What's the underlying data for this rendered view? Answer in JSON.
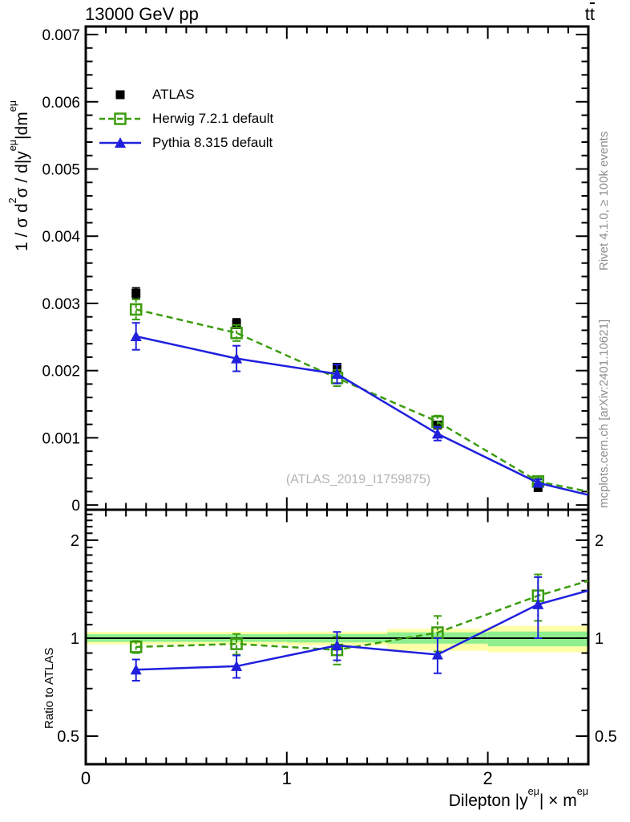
{
  "header": {
    "beam": "13000 GeV pp",
    "process_t": "t",
    "process_tbar": "t"
  },
  "credits": {
    "right_top": "Rivet 4.1.0, ≥ 100k events",
    "right_bottom": "mcplots.cern.ch [arXiv:2401.10621]"
  },
  "watermark": "(ATLAS_2019_I1759875)",
  "legend": {
    "items": [
      {
        "label": "ATLAS"
      },
      {
        "label": "Herwig 7.2.1 default"
      },
      {
        "label": "Pythia 8.315 default"
      }
    ]
  },
  "axis_titles": {
    "y_main_parts": {
      "p0": "1 / σ d",
      "p1": "2",
      "p2": "σ / d|y",
      "p3": "eμ",
      "p4": "|dm",
      "p5": "eμ"
    },
    "y_ratio": "Ratio to ATLAS",
    "x_parts": {
      "p0": "Dilepton |y",
      "p1": "eμ",
      "p2": "| × m",
      "p3": "eμ"
    }
  },
  "chart_data": {
    "type": "line",
    "title": "13000 GeV pp",
    "process": "ttbar",
    "xlabel": "Dilepton |y^emu| x m^emu",
    "ylabel_main": "1/sigma d2sigma / d|y^emu|dm^emu",
    "ylabel_ratio": "Ratio to ATLAS",
    "xlim": [
      0,
      2.5
    ],
    "x_centers": [
      0.25,
      0.75,
      1.25,
      1.75,
      2.25
    ],
    "bin_half_width": 0.25,
    "x_major_ticks": [
      {
        "v": 0,
        "label": "0"
      },
      {
        "v": 1,
        "label": "1"
      },
      {
        "v": 2,
        "label": "2"
      }
    ],
    "x_minor_step": 0.1,
    "main_panel": {
      "ylim": [
        -7e-05,
        0.00712
      ],
      "y_minor_step": 0.0002,
      "y_major_ticks": [
        {
          "v": 0,
          "label": "0"
        },
        {
          "v": 0.001,
          "label": "0.001"
        },
        {
          "v": 0.002,
          "label": "0.002"
        },
        {
          "v": 0.003,
          "label": "0.003"
        },
        {
          "v": 0.004,
          "label": "0.004"
        },
        {
          "v": 0.005,
          "label": "0.005"
        },
        {
          "v": 0.006,
          "label": "0.006"
        },
        {
          "v": 0.007,
          "label": "0.007"
        }
      ],
      "series": [
        {
          "name": "ATLAS",
          "marker": "square-filled",
          "color": "#000000",
          "line": "none",
          "values": [
            0.00315,
            0.0027,
            0.00205,
            0.00119,
            0.00026
          ],
          "errors": [
            8e-05,
            7e-05,
            5e-05,
            4e-05,
            2.5e-05
          ]
        },
        {
          "name": "Herwig 7.2.1 default",
          "marker": "square-open",
          "color": "#3b9c0e",
          "line": "dashed",
          "values": [
            0.00291,
            0.00256,
            0.00189,
            0.00124,
            0.00035
          ],
          "errors": [
            0.00015,
            0.00012,
            0.00012,
            9e-05,
            5e-05
          ],
          "edge_value": 0.0002
        },
        {
          "name": "Pythia 8.315 default",
          "marker": "triangle-filled",
          "color": "#2020dd",
          "line": "solid",
          "values": [
            0.00251,
            0.00218,
            0.00195,
            0.00106,
            0.00033
          ],
          "errors": [
            0.0002,
            0.00019,
            0.00014,
            0.0001,
            5e-05
          ],
          "edge_value": 0.00015
        }
      ]
    },
    "ratio_panel": {
      "ylim_log": [
        0.41,
        2.48
      ],
      "reference_line": 1,
      "y_major_ticks": [
        {
          "v": 0.5,
          "label": "0.5"
        },
        {
          "v": 1,
          "label": "1"
        },
        {
          "v": 2,
          "label": "2"
        }
      ],
      "y_minor_ticks": [
        0.6,
        0.7,
        0.8,
        0.9,
        1.1,
        1.2,
        1.3,
        1.4,
        1.5,
        1.6,
        1.7,
        1.8,
        1.9,
        2.1,
        2.2,
        2.3,
        2.4
      ],
      "bands": {
        "yellow_color": "#ffffa8",
        "green_color": "#8fef8f",
        "bins": [
          {
            "x0": 0.0,
            "x1": 0.5,
            "yellow": [
              0.957,
              1.046
            ],
            "green": [
              0.974,
              1.028
            ]
          },
          {
            "x0": 0.5,
            "x1": 1.0,
            "yellow": [
              0.957,
              1.046
            ],
            "green": [
              0.974,
              1.028
            ]
          },
          {
            "x0": 1.0,
            "x1": 1.5,
            "yellow": [
              0.95,
              1.048
            ],
            "green": [
              0.97,
              1.03
            ]
          },
          {
            "x0": 1.5,
            "x1": 2.0,
            "yellow": [
              0.915,
              1.068
            ],
            "green": [
              0.962,
              1.042
            ]
          },
          {
            "x0": 2.0,
            "x1": 2.5,
            "yellow": [
              0.905,
              1.09
            ],
            "green": [
              0.944,
              1.048
            ]
          }
        ]
      },
      "series": [
        {
          "name": "Herwig 7.2.1 default",
          "marker": "square-open",
          "color": "#3b9c0e",
          "line": "dashed",
          "values": [
            0.94,
            0.96,
            0.92,
            1.04,
            1.35
          ],
          "errors": [
            0.04,
            0.07,
            0.09,
            0.13,
            0.22
          ],
          "edge_value": 1.5
        },
        {
          "name": "Pythia 8.315 default",
          "marker": "triangle-filled",
          "color": "#2020dd",
          "line": "solid",
          "values": [
            0.8,
            0.82,
            0.95,
            0.89,
            1.27
          ],
          "errors": [
            0.06,
            0.065,
            0.095,
            0.11,
            0.27
          ],
          "edge_value": 1.4
        }
      ]
    }
  }
}
